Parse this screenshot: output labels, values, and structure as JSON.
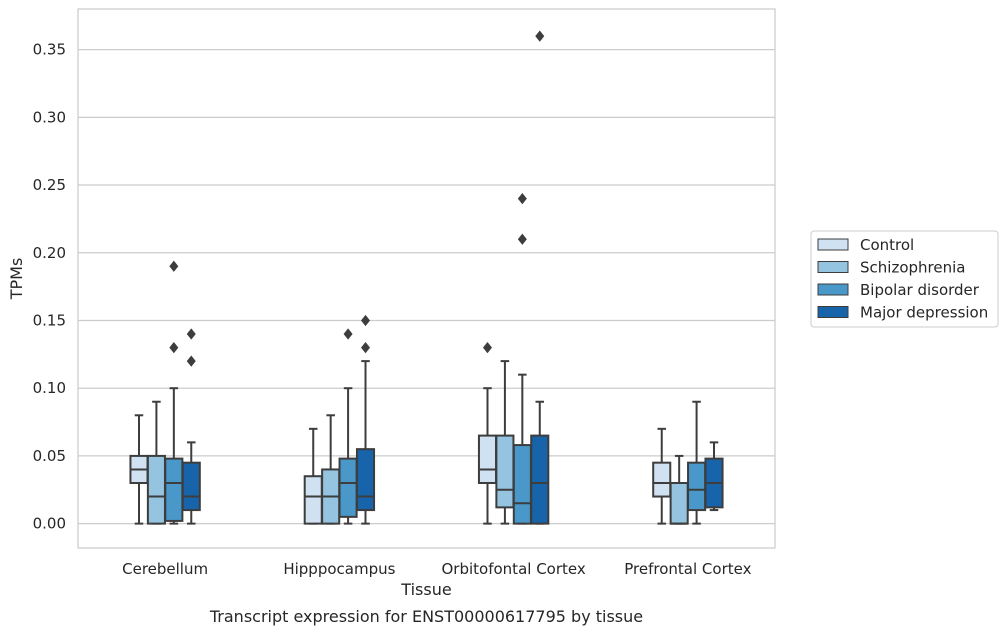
{
  "chart_data": {
    "type": "box",
    "title": "",
    "caption": "Transcript expression for ENST00000617795 by tissue",
    "xlabel": "Tissue",
    "ylabel": "TPMs",
    "ylim": [
      -0.018,
      0.38
    ],
    "yticks": [
      "0.00",
      "0.05",
      "0.10",
      "0.15",
      "0.20",
      "0.25",
      "0.30",
      "0.35"
    ],
    "grid": "horizontal",
    "legend_position": "right",
    "categories": [
      "Cerebellum",
      "Hipppocampus",
      "Orbitofontal Cortex",
      "Prefrontal Cortex"
    ],
    "series": [
      {
        "name": "Control",
        "color": "#d0e1f2",
        "boxes": [
          {
            "whislo": 0.0,
            "q1": 0.03,
            "med": 0.04,
            "q3": 0.05,
            "whishi": 0.08,
            "fliers": []
          },
          {
            "whislo": 0.0,
            "q1": 0.0,
            "med": 0.02,
            "q3": 0.035,
            "whishi": 0.07,
            "fliers": []
          },
          {
            "whislo": 0.0,
            "q1": 0.03,
            "med": 0.04,
            "q3": 0.065,
            "whishi": 0.1,
            "fliers": [
              0.13
            ]
          },
          {
            "whislo": 0.0,
            "q1": 0.02,
            "med": 0.03,
            "q3": 0.045,
            "whishi": 0.07,
            "fliers": []
          }
        ]
      },
      {
        "name": "Schizophrenia",
        "color": "#94c4df",
        "boxes": [
          {
            "whislo": 0.0,
            "q1": 0.0,
            "med": 0.02,
            "q3": 0.05,
            "whishi": 0.09,
            "fliers": []
          },
          {
            "whislo": 0.0,
            "q1": 0.0,
            "med": 0.02,
            "q3": 0.04,
            "whishi": 0.08,
            "fliers": []
          },
          {
            "whislo": 0.0,
            "q1": 0.012,
            "med": 0.025,
            "q3": 0.065,
            "whishi": 0.12,
            "fliers": []
          },
          {
            "whislo": 0.0,
            "q1": 0.0,
            "med": 0.0,
            "q3": 0.03,
            "whishi": 0.05,
            "fliers": []
          }
        ]
      },
      {
        "name": "Bipolar disorder",
        "color": "#4a98c9",
        "boxes": [
          {
            "whislo": 0.0,
            "q1": 0.002,
            "med": 0.03,
            "q3": 0.048,
            "whishi": 0.1,
            "fliers": [
              0.13,
              0.19
            ]
          },
          {
            "whislo": 0.0,
            "q1": 0.005,
            "med": 0.03,
            "q3": 0.048,
            "whishi": 0.1,
            "fliers": [
              0.14
            ]
          },
          {
            "whislo": 0.0,
            "q1": 0.0,
            "med": 0.015,
            "q3": 0.058,
            "whishi": 0.11,
            "fliers": [
              0.21,
              0.24
            ]
          },
          {
            "whislo": 0.0,
            "q1": 0.01,
            "med": 0.025,
            "q3": 0.045,
            "whishi": 0.09,
            "fliers": []
          }
        ]
      },
      {
        "name": "Major depression",
        "color": "#1764ab",
        "boxes": [
          {
            "whislo": 0.0,
            "q1": 0.01,
            "med": 0.02,
            "q3": 0.045,
            "whishi": 0.06,
            "fliers": [
              0.12,
              0.14
            ]
          },
          {
            "whislo": 0.0,
            "q1": 0.01,
            "med": 0.02,
            "q3": 0.055,
            "whishi": 0.12,
            "fliers": [
              0.13,
              0.15
            ]
          },
          {
            "whislo": 0.0,
            "q1": 0.0,
            "med": 0.03,
            "q3": 0.065,
            "whishi": 0.09,
            "fliers": [
              0.36
            ]
          },
          {
            "whislo": 0.01,
            "q1": 0.012,
            "med": 0.03,
            "q3": 0.048,
            "whishi": 0.06,
            "fliers": []
          }
        ]
      }
    ]
  }
}
